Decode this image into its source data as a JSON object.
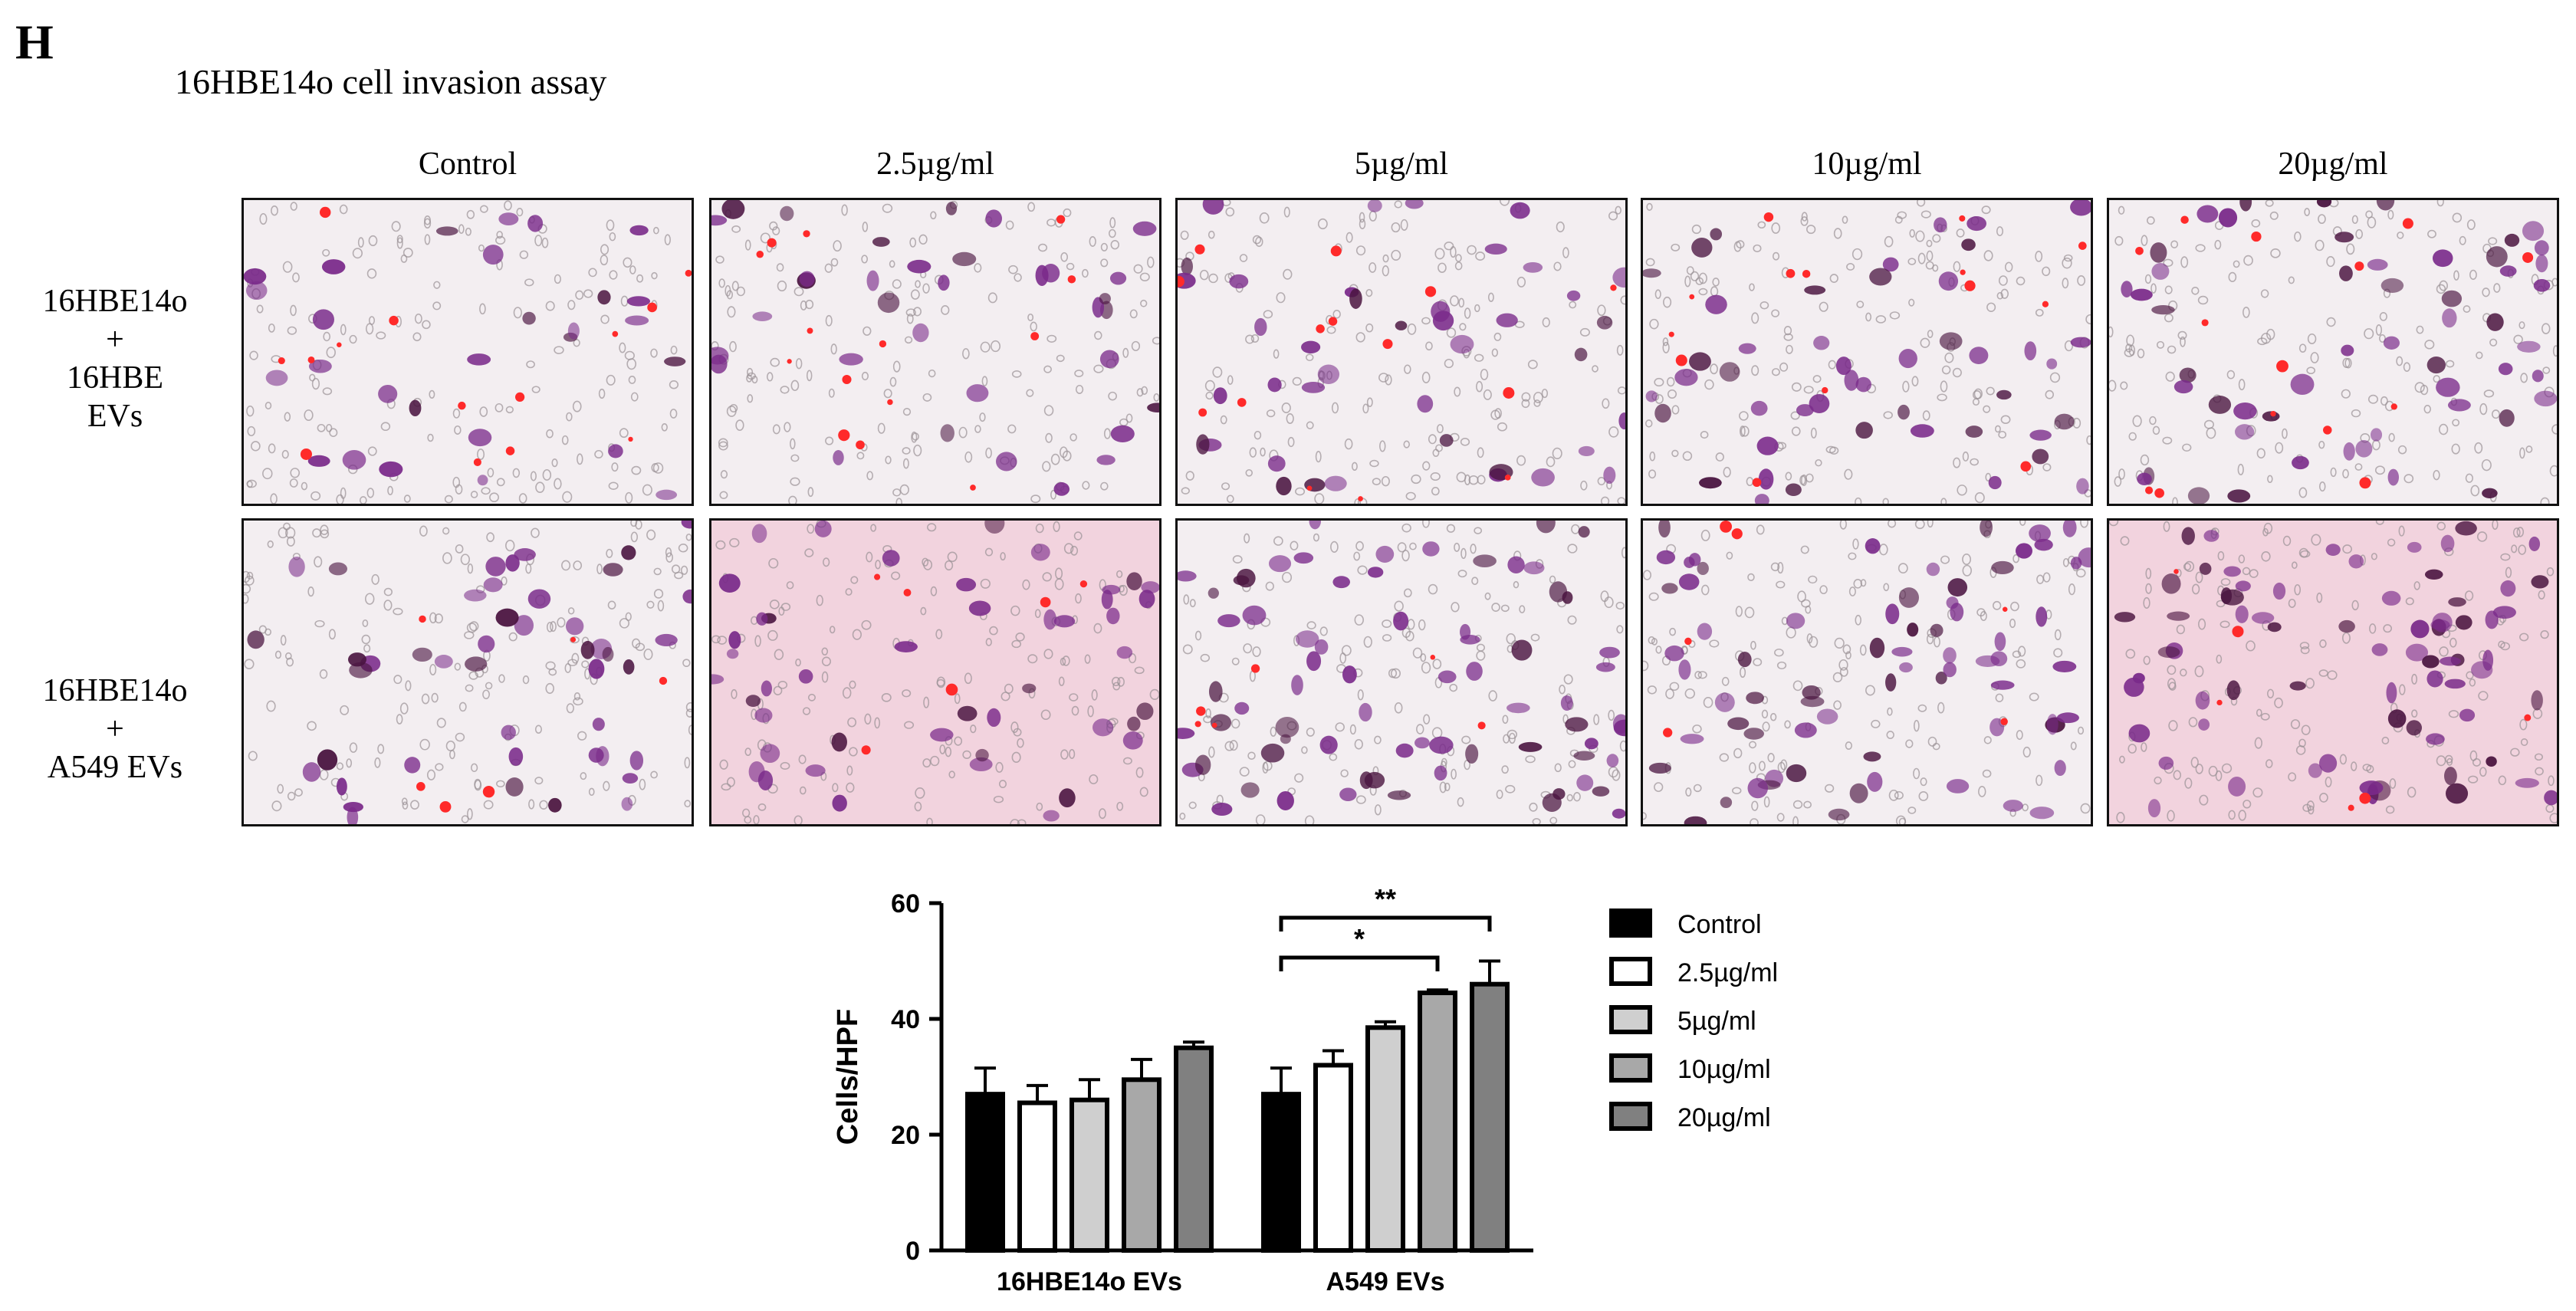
{
  "panel_letter": "H",
  "figure_title": "16HBE14o cell invasion assay",
  "micrograph_grid": {
    "columns": [
      "Control",
      "2.5µg/ml",
      "5µg/ml",
      "10µg/ml",
      "20µg/ml"
    ],
    "rows": [
      {
        "label_lines": [
          "16HBE14o",
          "+",
          "16HBE",
          "EVs"
        ]
      },
      {
        "label_lines": [
          "16HBE14o",
          "+",
          "A549 EVs"
        ]
      }
    ]
  },
  "colors": {
    "stain_purple": "#7a2a8a",
    "stain_dark": "#4a1440",
    "dye_red": "#ff2a2a",
    "background_light": "#f3eef1",
    "background_pink": "#f2d3de"
  },
  "chart_data": {
    "type": "bar",
    "groups": [
      "16HBE14o EVs",
      "A549 EVs"
    ],
    "series": [
      {
        "name": "Control",
        "values": [
          27,
          27
        ],
        "errors": [
          4.5,
          4.5
        ],
        "color": "#000000"
      },
      {
        "name": "2.5µg/ml",
        "values": [
          25.5,
          32
        ],
        "errors": [
          3,
          2.5
        ],
        "color": "#ffffff"
      },
      {
        "name": "5µg/ml",
        "values": [
          26,
          38.5
        ],
        "errors": [
          3.5,
          1
        ],
        "color": "#cfcfcf"
      },
      {
        "name": "10µg/ml",
        "values": [
          29.5,
          44.5
        ],
        "errors": [
          3.5,
          0.5
        ],
        "color": "#a8a8a8"
      },
      {
        "name": "20µg/ml",
        "values": [
          35,
          46
        ],
        "errors": [
          1,
          4
        ],
        "color": "#808080"
      }
    ],
    "ylabel": "Cells/HPF",
    "ylim": [
      0,
      60
    ],
    "yticks": [
      0,
      20,
      40,
      60
    ],
    "legend_position": "right",
    "significance": [
      {
        "group": "A549 EVs",
        "from": "Control",
        "to": "10µg/ml",
        "label": "*"
      },
      {
        "group": "A549 EVs",
        "from": "Control",
        "to": "20µg/ml",
        "label": "**"
      }
    ]
  }
}
